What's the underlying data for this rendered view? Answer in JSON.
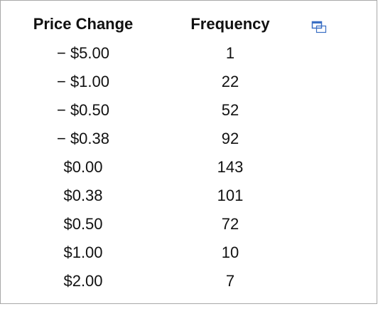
{
  "table": {
    "headers": [
      "Price Change",
      "Frequency"
    ],
    "rows": [
      [
        "− $5.00",
        1
      ],
      [
        "− $1.00",
        22
      ],
      [
        "− $0.50",
        52
      ],
      [
        "− $0.38",
        92
      ],
      [
        "$0.00",
        143
      ],
      [
        "$0.38",
        101
      ],
      [
        "$0.50",
        72
      ],
      [
        "$1.00",
        10
      ],
      [
        "$2.00",
        7
      ]
    ]
  }
}
